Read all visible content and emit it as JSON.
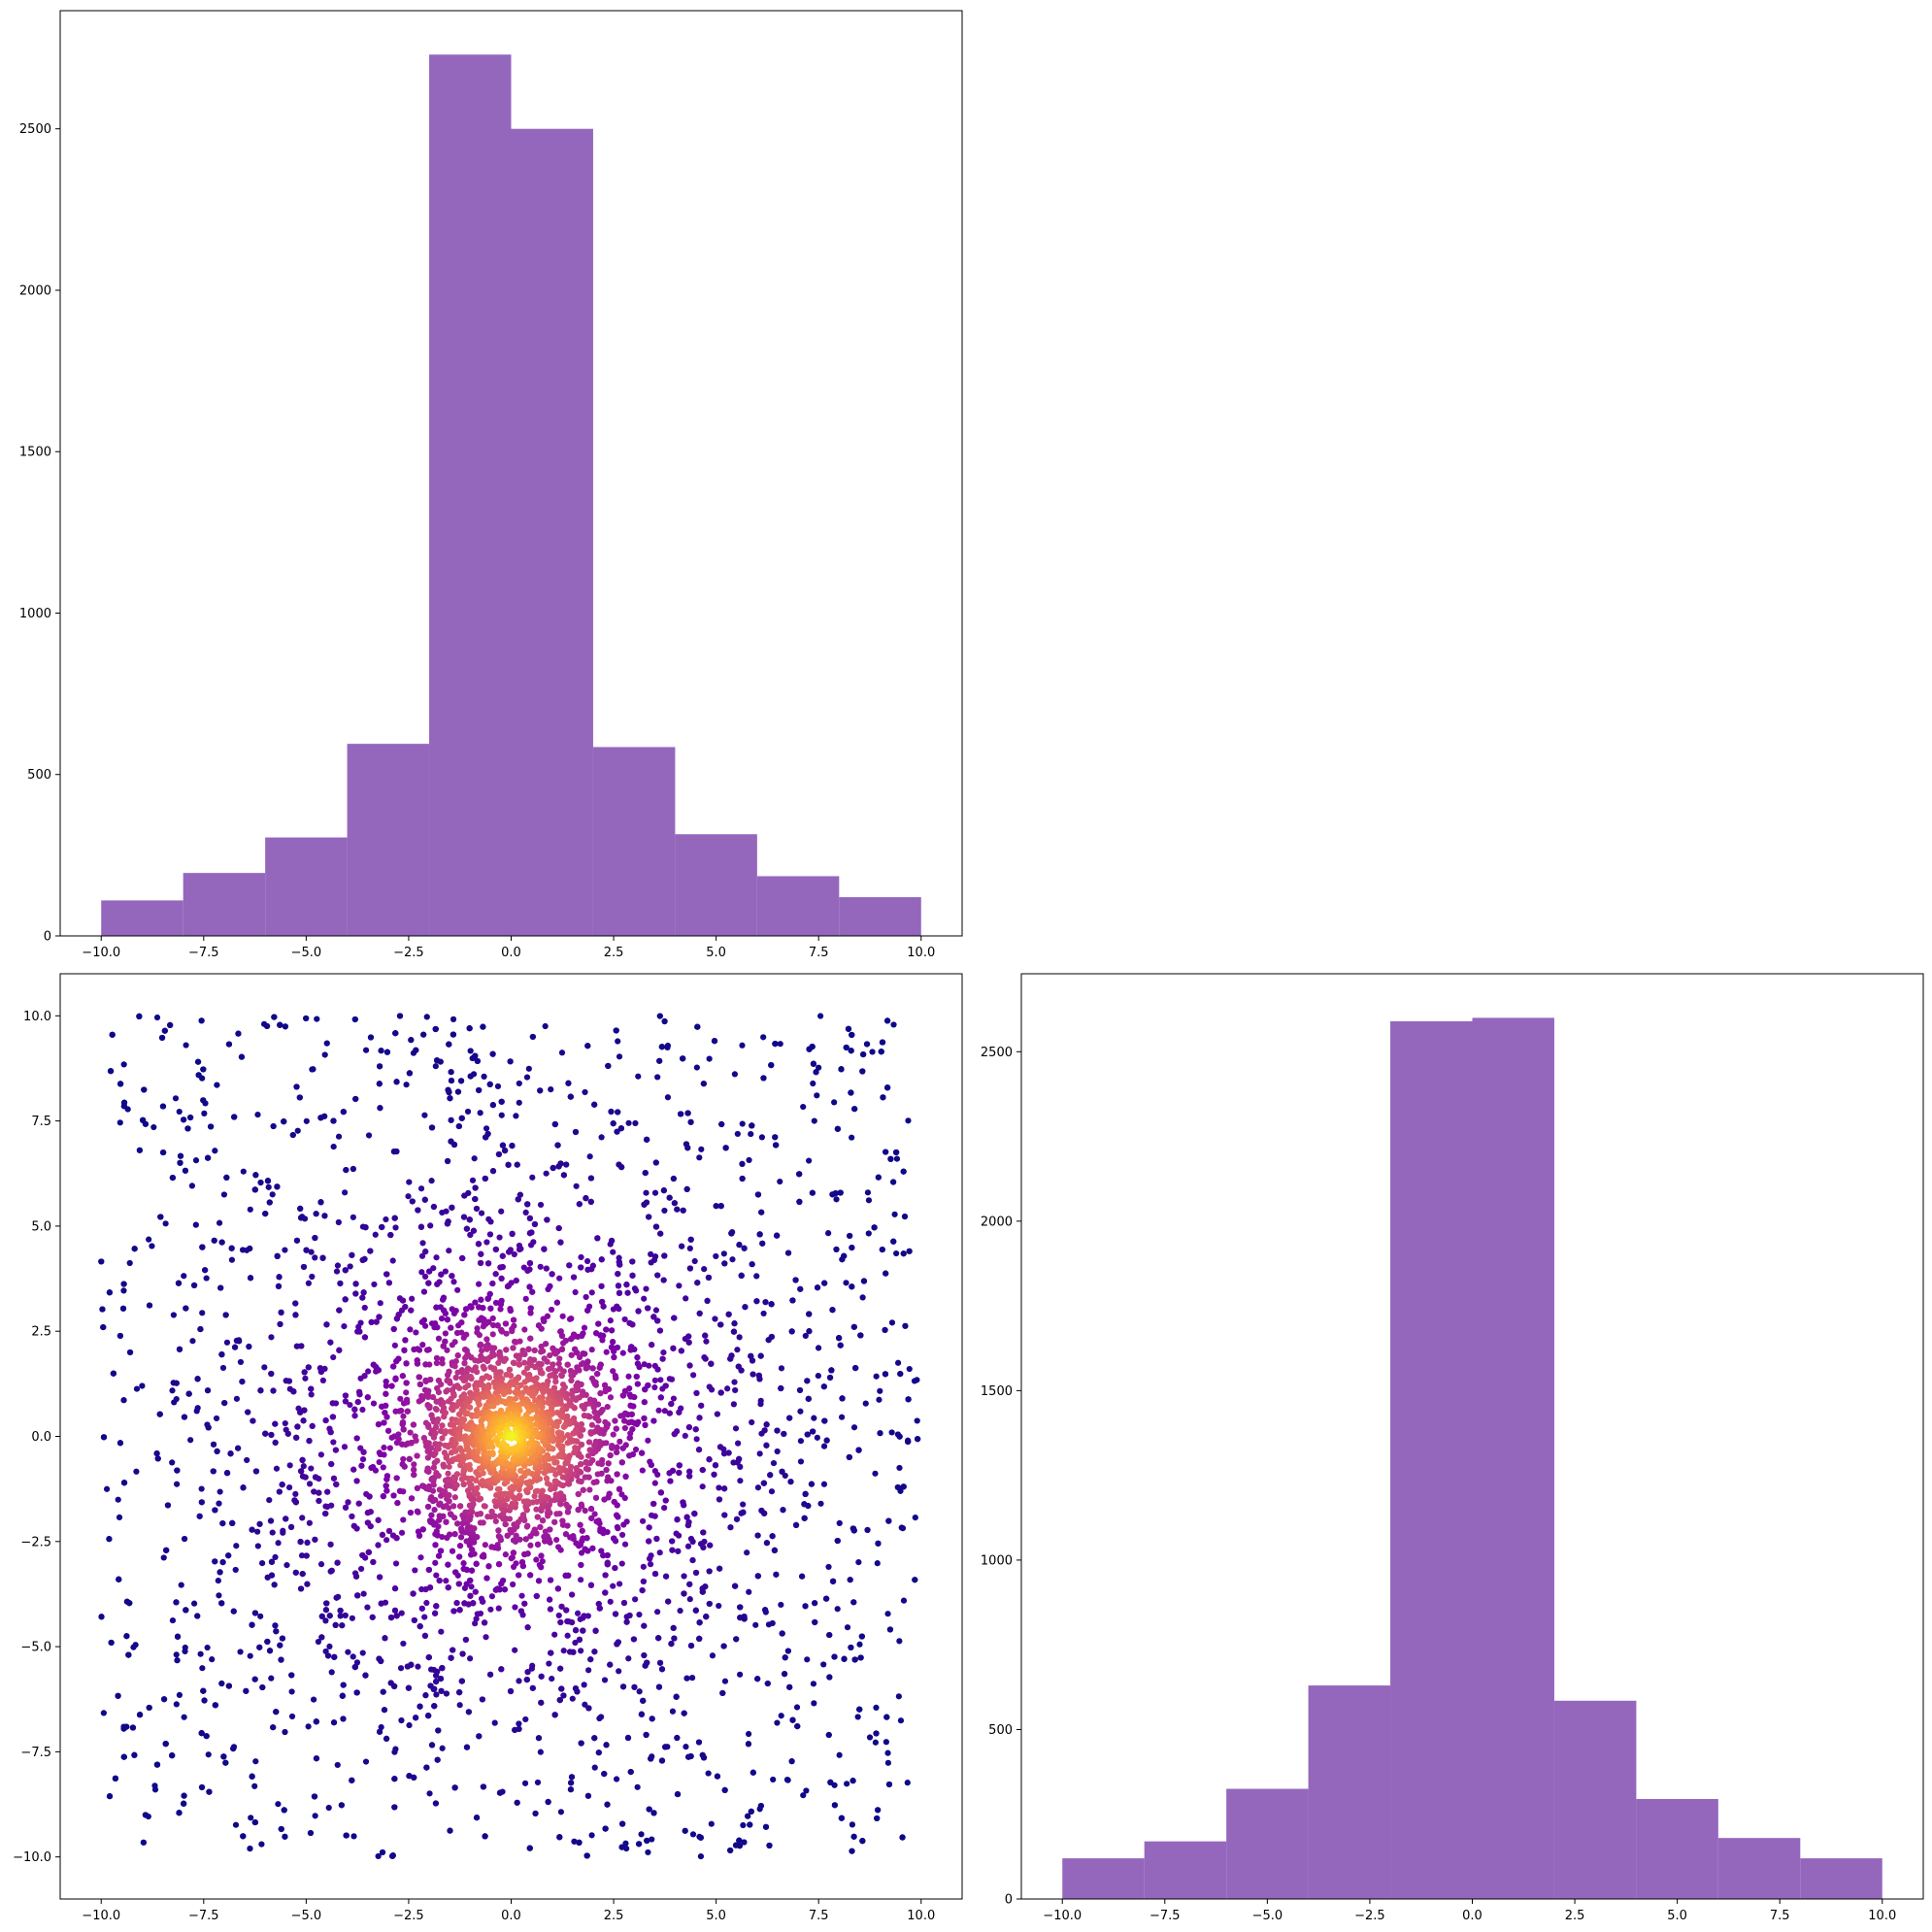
{
  "figure": {
    "background": "#ffffff",
    "bar_color": "#9467bd",
    "colormap": "plasma"
  },
  "chart_data": [
    {
      "type": "bar",
      "panel": "top-left",
      "subtype": "histogram",
      "title": "",
      "xlabel": "",
      "ylabel": "",
      "bin_edges": [
        -10,
        -8,
        -6,
        -4,
        -2,
        0,
        2,
        4,
        6,
        8,
        10
      ],
      "values": [
        110,
        195,
        305,
        595,
        2730,
        2500,
        585,
        315,
        185,
        120
      ],
      "xlim": [
        -11,
        11
      ],
      "ylim": [
        0,
        2866
      ],
      "xticks": [
        -10.0,
        -7.5,
        -5.0,
        -2.5,
        0.0,
        2.5,
        5.0,
        7.5,
        10.0
      ],
      "xtick_labels": [
        "−10.0",
        "−7.5",
        "−5.0",
        "−2.5",
        "0.0",
        "2.5",
        "5.0",
        "7.5",
        "10.0"
      ],
      "yticks": [
        0,
        500,
        1000,
        1500,
        2000,
        2500
      ],
      "ytick_labels": [
        "0",
        "500",
        "1000",
        "1500",
        "2000",
        "2500"
      ],
      "color": "#9467bd",
      "grid": false
    },
    {
      "type": "scatter",
      "panel": "bottom-left",
      "title": "",
      "xlabel": "",
      "ylabel": "",
      "distribution": "points within [-10, 10] x [-10, 10], densely concentrated at (0, 0); color encodes local density (plasma colormap: dark purple at the sparse edges, yellow at the dense center)",
      "approx_point_count": 7000,
      "center": [
        0,
        0
      ],
      "xlim": [
        -11,
        11
      ],
      "ylim": [
        -11,
        11
      ],
      "xticks": [
        -10.0,
        -7.5,
        -5.0,
        -2.5,
        0.0,
        2.5,
        5.0,
        7.5,
        10.0
      ],
      "xtick_labels": [
        "−10.0",
        "−7.5",
        "−5.0",
        "−2.5",
        "0.0",
        "2.5",
        "5.0",
        "7.5",
        "10.0"
      ],
      "yticks": [
        -10.0,
        -7.5,
        -5.0,
        -2.5,
        0.0,
        2.5,
        5.0,
        7.5,
        10.0
      ],
      "ytick_labels": [
        "−10.0",
        "−7.5",
        "−5.0",
        "−2.5",
        "0.0",
        "2.5",
        "5.0",
        "7.5",
        "10.0"
      ],
      "grid": false
    },
    {
      "type": "bar",
      "panel": "bottom-right",
      "subtype": "histogram",
      "title": "",
      "xlabel": "",
      "ylabel": "",
      "bin_edges": [
        -10,
        -8,
        -6,
        -4,
        -2,
        0,
        2,
        4,
        6,
        8,
        10
      ],
      "values": [
        120,
        170,
        325,
        630,
        2590,
        2600,
        585,
        295,
        180,
        120
      ],
      "xlim": [
        -11,
        11
      ],
      "ylim": [
        0,
        2730
      ],
      "xticks": [
        -10.0,
        -7.5,
        -5.0,
        -2.5,
        0.0,
        2.5,
        5.0,
        7.5,
        10.0
      ],
      "xtick_labels": [
        "−10.0",
        "−7.5",
        "−5.0",
        "−2.5",
        "0.0",
        "2.5",
        "5.0",
        "7.5",
        "10.0"
      ],
      "yticks": [
        0,
        500,
        1000,
        1500,
        2000,
        2500
      ],
      "ytick_labels": [
        "0",
        "500",
        "1000",
        "1500",
        "2000",
        "2500"
      ],
      "color": "#9467bd",
      "grid": false
    }
  ]
}
